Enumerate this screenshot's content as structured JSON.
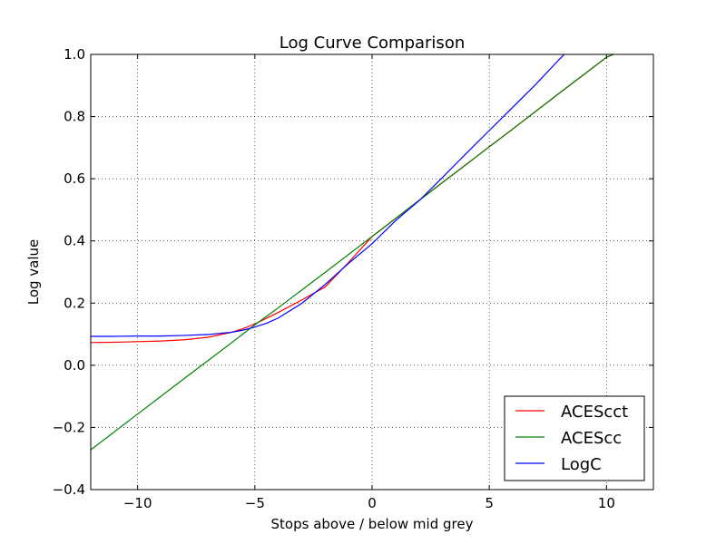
{
  "chart_data": {
    "type": "line",
    "title": "Log Curve Comparison",
    "xlabel": "Stops above / below mid grey",
    "ylabel": "Log value",
    "xlim": [
      -12,
      12
    ],
    "ylim": [
      -0.4,
      1.0
    ],
    "xticks": [
      -10,
      -5,
      0,
      5,
      10
    ],
    "xtick_labels": [
      "−10",
      "−5",
      "0",
      "5",
      "10"
    ],
    "yticks": [
      -0.4,
      -0.2,
      0.0,
      0.2,
      0.4,
      0.6,
      0.8,
      1.0
    ],
    "ytick_labels": [
      "−0.4",
      "−0.2",
      "0.0",
      "0.2",
      "0.4",
      "0.6",
      "0.8",
      "1.0"
    ],
    "grid": true,
    "legend_position": "lower-right",
    "series": [
      {
        "name": "ACEScct",
        "color": "#ff0000",
        "x": [
          -12,
          -11,
          -10,
          -9,
          -8,
          -7,
          -6,
          -5.5,
          -5,
          -4.5,
          -4,
          -3,
          -2,
          -1,
          0,
          1,
          2,
          3,
          4,
          5,
          6,
          7,
          8,
          9,
          10,
          10.3
        ],
        "y": [
          0.073,
          0.074,
          0.076,
          0.078,
          0.082,
          0.09,
          0.106,
          0.118,
          0.133,
          0.151,
          0.17,
          0.21,
          0.252,
          0.331,
          0.414,
          0.472,
          0.53,
          0.588,
          0.645,
          0.703,
          0.76,
          0.818,
          0.876,
          0.933,
          0.991,
          1.0
        ]
      },
      {
        "name": "ACEScc",
        "color": "#008000",
        "x": [
          -12,
          -10,
          -8,
          -6,
          -5,
          -4,
          -2,
          0,
          2,
          4,
          6,
          8,
          10,
          10.3
        ],
        "y": [
          -0.272,
          -0.157,
          -0.042,
          0.072,
          0.13,
          0.185,
          0.299,
          0.414,
          0.53,
          0.645,
          0.76,
          0.876,
          0.991,
          1.0
        ]
      },
      {
        "name": "LogC",
        "color": "#0000ff",
        "x": [
          -12,
          -11,
          -10,
          -9,
          -8,
          -7,
          -6,
          -5.5,
          -5,
          -4.5,
          -4,
          -3,
          -2,
          -1,
          0,
          1,
          2,
          3,
          4,
          5,
          6,
          7,
          8,
          8.2
        ],
        "y": [
          0.093,
          0.093,
          0.094,
          0.094,
          0.096,
          0.099,
          0.106,
          0.113,
          0.123,
          0.135,
          0.152,
          0.199,
          0.26,
          0.328,
          0.391,
          0.465,
          0.529,
          0.604,
          0.68,
          0.755,
          0.83,
          0.905,
          0.985,
          1.0
        ]
      }
    ]
  }
}
